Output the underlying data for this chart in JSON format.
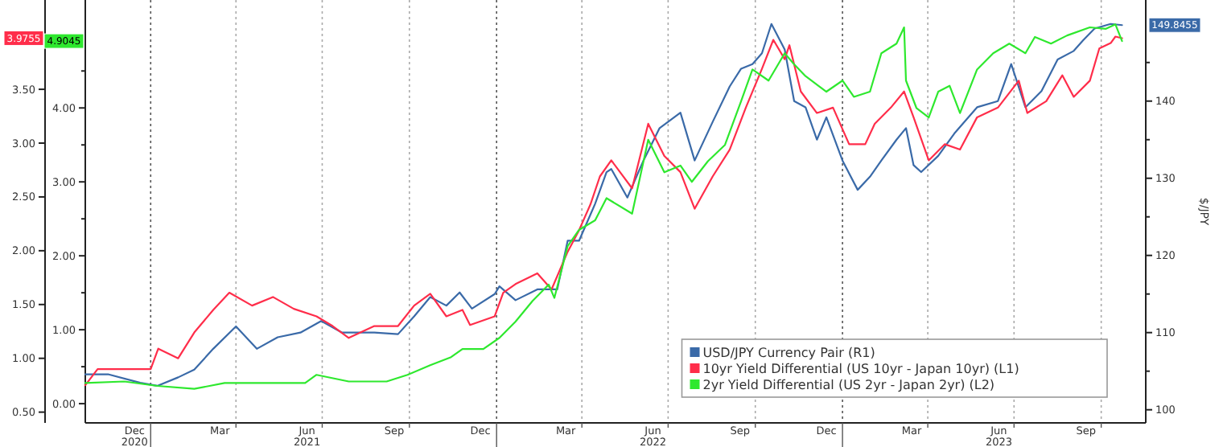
{
  "chart_data": {
    "type": "line",
    "y3label": "$/JPY",
    "legend": "bottom right",
    "annotations": [
      "149.8455",
      "3.9755",
      "4.9045"
    ],
    "grid": "x",
    "xlim": [
      "2020-10-24",
      "2023-11-17"
    ],
    "xticks": [
      {
        "value": "2020-12-15",
        "label": "Dec\n2020"
      },
      {
        "value": "2021-01-01",
        "label": null
      },
      {
        "value": "2021-03-15",
        "label": "Mar"
      },
      {
        "value": "2021-04-01",
        "label": null
      },
      {
        "value": "2021-06-15",
        "label": "Jun\n2021"
      },
      {
        "value": "2021-07-01",
        "label": null
      },
      {
        "value": "2021-09-15",
        "label": "Sep"
      },
      {
        "value": "2021-10-01",
        "label": null
      },
      {
        "value": "2021-12-15",
        "label": "Dec"
      },
      {
        "value": "2022-01-01",
        "label": null
      },
      {
        "value": "2022-03-15",
        "label": "Mar"
      },
      {
        "value": "2022-04-01",
        "label": null
      },
      {
        "value": "2022-06-15",
        "label": "Jun\n2022"
      },
      {
        "value": "2022-07-01",
        "label": null
      },
      {
        "value": "2022-09-15",
        "label": "Sep"
      },
      {
        "value": "2022-10-01",
        "label": null
      },
      {
        "value": "2022-12-15",
        "label": "Dec"
      },
      {
        "value": "2023-01-01",
        "label": null
      },
      {
        "value": "2023-03-15",
        "label": "Mar"
      },
      {
        "value": "2023-04-01",
        "label": null
      },
      {
        "value": "2023-06-15",
        "label": "Jun\n2023"
      },
      {
        "value": "2023-07-01",
        "label": null
      },
      {
        "value": "2023-09-15",
        "label": "Sep"
      },
      {
        "value": "2023-10-01",
        "label": null
      }
    ],
    "ylim": [
      0.4,
      4.33
    ],
    "yticks": [
      {
        "value": 0.5,
        "label": "0.50"
      },
      {
        "value": 1,
        "label": "1.00"
      },
      {
        "value": 1.5,
        "label": "1.50"
      },
      {
        "value": 2,
        "label": "2.00"
      },
      {
        "value": 2.5,
        "label": "2.50"
      },
      {
        "value": 3,
        "label": "3.00"
      },
      {
        "value": 3.5,
        "label": "3.50"
      }
    ],
    "y2lim": [
      -0.26,
      5.46
    ],
    "y2ticks": [
      {
        "value": 0,
        "label": "0.00"
      },
      {
        "value": 0.5,
        "label": null
      },
      {
        "value": 1,
        "label": "1.00"
      },
      {
        "value": 1.5,
        "label": null
      },
      {
        "value": 2,
        "label": "2.00"
      },
      {
        "value": 2.5,
        "label": null
      },
      {
        "value": 3,
        "label": "3.00"
      },
      {
        "value": 3.5,
        "label": null
      },
      {
        "value": 4,
        "label": "4.00"
      },
      {
        "value": 4.5,
        "label": null
      }
    ],
    "y3lim": [
      98.3,
      153.1
    ],
    "y3ticks": [
      100,
      {
        "value": 105,
        "label": null
      },
      110,
      {
        "value": 115,
        "label": null
      },
      120,
      {
        "value": 125,
        "label": null
      },
      130,
      {
        "value": 135,
        "label": null
      },
      140,
      {
        "value": 145,
        "label": null
      }
    ],
    "series": [
      {
        "name": "USD/JPY Currency Pair (R1)",
        "color": "#3a6aa8",
        "axis": "y3",
        "x": [
          "2020-10-24",
          "2020-11-17",
          "2020-12-21",
          "2021-01-08",
          "2021-01-30",
          "2021-02-16",
          "2021-03-08",
          "2021-04-01",
          "2021-04-23",
          "2021-05-15",
          "2021-06-08",
          "2021-06-30",
          "2021-07-22",
          "2021-08-25",
          "2021-09-19",
          "2021-10-06",
          "2021-10-23",
          "2021-11-09",
          "2021-11-23",
          "2021-12-06",
          "2021-12-30",
          "2022-01-04",
          "2022-01-21",
          "2022-02-13",
          "2022-03-06",
          "2022-03-17",
          "2022-03-29",
          "2022-04-15",
          "2022-04-27",
          "2022-05-02",
          "2022-05-19",
          "2022-06-05",
          "2022-06-22",
          "2022-07-14",
          "2022-07-29",
          "2022-08-17",
          "2022-09-04",
          "2022-09-16",
          "2022-09-28",
          "2022-10-08",
          "2022-10-18",
          "2022-11-01",
          "2022-11-11",
          "2022-11-23",
          "2022-12-05",
          "2022-12-15",
          "2023-01-01",
          "2023-01-17",
          "2023-01-30",
          "2023-02-11",
          "2023-02-27",
          "2023-03-09",
          "2023-03-17",
          "2023-03-25",
          "2023-04-12",
          "2023-04-29",
          "2023-05-23",
          "2023-06-14",
          "2023-06-28",
          "2023-07-13",
          "2023-07-30",
          "2023-08-16",
          "2023-09-02",
          "2023-09-12",
          "2023-09-24",
          "2023-10-11",
          "2023-10-23"
        ],
        "values": [
          104.6,
          104.6,
          103.5,
          103.1,
          104.2,
          105.2,
          107.9,
          110.8,
          107.9,
          109.4,
          110,
          111.5,
          110,
          110,
          109.8,
          112.1,
          114.6,
          113.5,
          115.2,
          113.1,
          115,
          116,
          114.2,
          115.6,
          115.6,
          121.9,
          121.9,
          126.7,
          130.8,
          131.2,
          127.5,
          132.3,
          136.5,
          138.5,
          132.3,
          137.3,
          141.9,
          144.2,
          144.8,
          146.2,
          150,
          146.7,
          140,
          139.2,
          135,
          137.9,
          132.3,
          128.5,
          130.2,
          132.3,
          135,
          136.5,
          131.7,
          130.8,
          132.9,
          135.8,
          139.2,
          140,
          144.8,
          139.2,
          141.3,
          145.4,
          146.5,
          147.9,
          149.4,
          150,
          149.8455
        ]
      },
      {
        "name": "10yr Yield Differential (US 10yr - Japan 10yr) (L1)",
        "color": "#ff2d4a",
        "axis": "y",
        "x": [
          "2020-10-24",
          "2020-11-06",
          "2020-12-04",
          "2021-01-01",
          "2021-01-09",
          "2021-01-30",
          "2021-02-16",
          "2021-03-08",
          "2021-03-25",
          "2021-04-18",
          "2021-05-10",
          "2021-06-01",
          "2021-06-25",
          "2021-07-12",
          "2021-07-29",
          "2021-08-25",
          "2021-09-19",
          "2021-10-06",
          "2021-10-23",
          "2021-11-09",
          "2021-11-26",
          "2021-12-04",
          "2021-12-30",
          "2022-01-08",
          "2022-01-21",
          "2022-02-13",
          "2022-02-28",
          "2022-03-17",
          "2022-03-29",
          "2022-04-10",
          "2022-04-20",
          "2022-05-02",
          "2022-05-24",
          "2022-06-10",
          "2022-06-27",
          "2022-07-14",
          "2022-07-29",
          "2022-08-17",
          "2022-09-04",
          "2022-09-21",
          "2022-10-08",
          "2022-10-20",
          "2022-11-01",
          "2022-11-06",
          "2022-11-18",
          "2022-12-05",
          "2022-12-22",
          "2023-01-08",
          "2023-01-25",
          "2023-02-04",
          "2023-02-21",
          "2023-03-07",
          "2023-03-17",
          "2023-04-02",
          "2023-04-19",
          "2023-05-05",
          "2023-05-23",
          "2023-06-14",
          "2023-07-06",
          "2023-07-15",
          "2023-08-04",
          "2023-08-21",
          "2023-09-02",
          "2023-09-19",
          "2023-09-29",
          "2023-10-11",
          "2023-10-16",
          "2023-10-23"
        ],
        "values": [
          0.75,
          0.9,
          0.9,
          0.9,
          1.09,
          1.0,
          1.24,
          1.45,
          1.61,
          1.49,
          1.57,
          1.46,
          1.39,
          1.3,
          1.19,
          1.3,
          1.3,
          1.49,
          1.6,
          1.39,
          1.45,
          1.31,
          1.39,
          1.61,
          1.69,
          1.79,
          1.64,
          1.99,
          2.19,
          2.43,
          2.69,
          2.84,
          2.58,
          3.18,
          2.88,
          2.73,
          2.39,
          2.69,
          2.94,
          3.33,
          3.69,
          3.96,
          3.78,
          3.91,
          3.48,
          3.28,
          3.33,
          2.99,
          2.99,
          3.18,
          3.33,
          3.48,
          3.24,
          2.84,
          2.99,
          2.94,
          3.24,
          3.33,
          3.58,
          3.28,
          3.39,
          3.63,
          3.43,
          3.58,
          3.88,
          3.93,
          3.99,
          3.9755
        ]
      },
      {
        "name": "2yr Yield Differential (US 2yr - Japan 2yr) (L2)",
        "color": "#2ee82e",
        "axis": "y2",
        "x": [
          "2020-10-24",
          "2020-12-04",
          "2021-01-08",
          "2021-02-16",
          "2021-03-20",
          "2021-05-05",
          "2021-06-13",
          "2021-06-25",
          "2021-07-29",
          "2021-09-07",
          "2021-09-29",
          "2021-10-23",
          "2021-11-14",
          "2021-11-26",
          "2021-12-18",
          "2022-01-04",
          "2022-01-21",
          "2022-02-08",
          "2022-02-25",
          "2022-03-03",
          "2022-03-17",
          "2022-03-29",
          "2022-04-15",
          "2022-04-27",
          "2022-05-24",
          "2022-06-10",
          "2022-06-27",
          "2022-07-14",
          "2022-07-26",
          "2022-08-12",
          "2022-08-30",
          "2022-09-16",
          "2022-09-28",
          "2022-10-15",
          "2022-11-01",
          "2022-11-11",
          "2022-11-23",
          "2022-12-15",
          "2023-01-01",
          "2023-01-13",
          "2023-01-30",
          "2023-02-11",
          "2023-02-27",
          "2023-03-07",
          "2023-03-09",
          "2023-03-20",
          "2023-04-02",
          "2023-04-12",
          "2023-04-24",
          "2023-05-05",
          "2023-05-23",
          "2023-06-09",
          "2023-06-26",
          "2023-07-13",
          "2023-07-23",
          "2023-08-09",
          "2023-08-26",
          "2023-09-19",
          "2023-10-06",
          "2023-10-16",
          "2023-10-23"
        ],
        "values": [
          0.28,
          0.3,
          0.24,
          0.2,
          0.28,
          0.28,
          0.28,
          0.39,
          0.3,
          0.3,
          0.39,
          0.52,
          0.63,
          0.74,
          0.74,
          0.89,
          1.11,
          1.39,
          1.61,
          1.43,
          2.13,
          2.35,
          2.48,
          2.78,
          2.57,
          3.57,
          3.13,
          3.22,
          3.0,
          3.28,
          3.5,
          4.09,
          4.52,
          4.37,
          4.74,
          4.59,
          4.43,
          4.22,
          4.37,
          4.15,
          4.22,
          4.74,
          4.87,
          5.09,
          4.37,
          4.0,
          3.87,
          4.22,
          4.3,
          3.93,
          4.52,
          4.74,
          4.87,
          4.74,
          4.96,
          4.87,
          4.98,
          5.09,
          5.07,
          5.13,
          4.9045
        ]
      }
    ]
  }
}
